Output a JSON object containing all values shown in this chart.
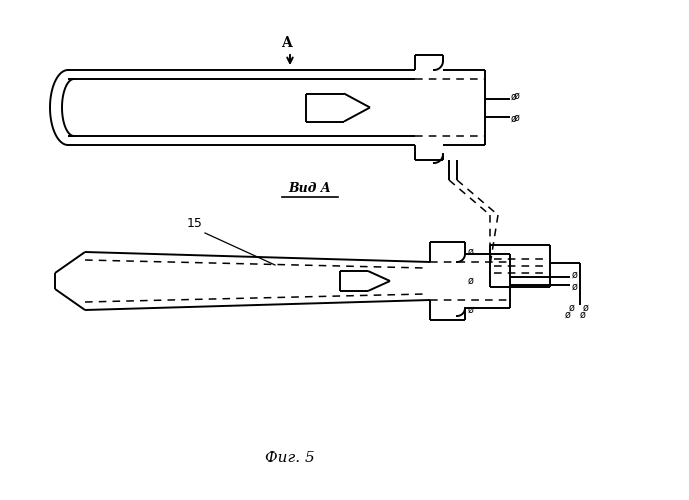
{
  "fig_label": "Фиг. 5",
  "view_label": "Вид A",
  "section_label": "A",
  "label_15": "15",
  "bg_color": "#ffffff",
  "line_color": "#000000"
}
